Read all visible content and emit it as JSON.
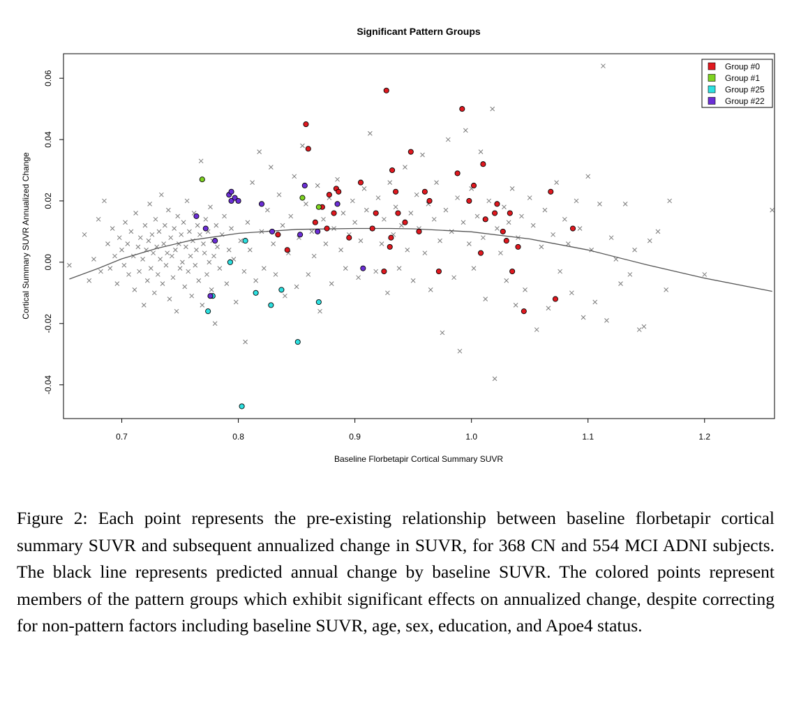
{
  "chart_data": {
    "type": "scatter",
    "title": "Significant Pattern Groups",
    "xlabel": "Baseline Florbetapir Cortical Summary SUVR",
    "ylabel": "Cortical Summary SUVR Annualized Change",
    "xlim": [
      0.65,
      1.26
    ],
    "ylim": [
      -0.051,
      0.068
    ],
    "x_ticks": [
      "0.7",
      "0.8",
      "0.9",
      "1.0",
      "1.1",
      "1.2"
    ],
    "y_ticks": [
      "-0.04",
      "-0.02",
      "0.00",
      "0.02",
      "0.04",
      "0.06"
    ],
    "legend_position": "top-right",
    "grid": false,
    "background_points": {
      "marker": "x",
      "color": "#7a7a7a",
      "points": [
        [
          0.655,
          -0.001
        ],
        [
          0.668,
          0.009
        ],
        [
          0.672,
          -0.006
        ],
        [
          0.676,
          0.001
        ],
        [
          0.68,
          0.014
        ],
        [
          0.682,
          -0.003
        ],
        [
          0.685,
          0.02
        ],
        [
          0.688,
          0.006
        ],
        [
          0.69,
          -0.002
        ],
        [
          0.692,
          0.011
        ],
        [
          0.694,
          0.002
        ],
        [
          0.696,
          -0.007
        ],
        [
          0.698,
          0.008
        ],
        [
          0.7,
          0.004
        ],
        [
          0.702,
          -0.001
        ],
        [
          0.703,
          0.013
        ],
        [
          0.705,
          0.006
        ],
        [
          0.706,
          -0.004
        ],
        [
          0.708,
          0.01
        ],
        [
          0.71,
          0.002
        ],
        [
          0.711,
          -0.009
        ],
        [
          0.712,
          0.016
        ],
        [
          0.714,
          0.005
        ],
        [
          0.715,
          -0.003
        ],
        [
          0.716,
          0.008
        ],
        [
          0.718,
          0.001
        ],
        [
          0.719,
          -0.014
        ],
        [
          0.72,
          0.012
        ],
        [
          0.721,
          0.004
        ],
        [
          0.722,
          -0.006
        ],
        [
          0.723,
          0.007
        ],
        [
          0.724,
          0.019
        ],
        [
          0.725,
          -0.002
        ],
        [
          0.726,
          0.009
        ],
        [
          0.727,
          0.003
        ],
        [
          0.728,
          -0.01
        ],
        [
          0.729,
          0.014
        ],
        [
          0.73,
          0.005
        ],
        [
          0.731,
          -0.004
        ],
        [
          0.732,
          0.01
        ],
        [
          0.733,
          0.001
        ],
        [
          0.734,
          0.022
        ],
        [
          0.735,
          -0.007
        ],
        [
          0.736,
          0.006
        ],
        [
          0.737,
          0.012
        ],
        [
          0.738,
          -0.001
        ],
        [
          0.739,
          0.003
        ],
        [
          0.74,
          0.017
        ],
        [
          0.741,
          -0.012
        ],
        [
          0.742,
          0.008
        ],
        [
          0.743,
          0.002
        ],
        [
          0.744,
          -0.005
        ],
        [
          0.745,
          0.011
        ],
        [
          0.746,
          0.004
        ],
        [
          0.747,
          -0.016
        ],
        [
          0.748,
          0.015
        ],
        [
          0.749,
          0.006
        ],
        [
          0.75,
          -0.002
        ],
        [
          0.751,
          0.009
        ],
        [
          0.752,
          0.0
        ],
        [
          0.753,
          0.013
        ],
        [
          0.754,
          -0.008
        ],
        [
          0.755,
          0.005
        ],
        [
          0.756,
          0.02
        ],
        [
          0.757,
          -0.003
        ],
        [
          0.758,
          0.01
        ],
        [
          0.759,
          0.002
        ],
        [
          0.76,
          -0.011
        ],
        [
          0.761,
          0.007
        ],
        [
          0.762,
          0.016
        ],
        [
          0.763,
          -0.001
        ],
        [
          0.764,
          0.004
        ],
        [
          0.765,
          0.012
        ],
        [
          0.766,
          -0.006
        ],
        [
          0.767,
          0.009
        ],
        [
          0.768,
          0.033
        ],
        [
          0.769,
          -0.014
        ],
        [
          0.77,
          0.006
        ],
        [
          0.771,
          0.003
        ],
        [
          0.772,
          0.014
        ],
        [
          0.773,
          -0.004
        ],
        [
          0.774,
          0.01
        ],
        [
          0.775,
          0.0
        ],
        [
          0.776,
          0.018
        ],
        [
          0.777,
          -0.009
        ],
        [
          0.778,
          0.007
        ],
        [
          0.779,
          0.002
        ],
        [
          0.78,
          -0.02
        ],
        [
          0.781,
          0.012
        ],
        [
          0.782,
          0.005
        ],
        [
          0.784,
          -0.002
        ],
        [
          0.786,
          0.009
        ],
        [
          0.788,
          0.015
        ],
        [
          0.79,
          -0.007
        ],
        [
          0.792,
          0.004
        ],
        [
          0.794,
          0.011
        ],
        [
          0.796,
          0.001
        ],
        [
          0.798,
          -0.013
        ],
        [
          0.8,
          0.02
        ],
        [
          0.802,
          0.007
        ],
        [
          0.805,
          -0.003
        ],
        [
          0.806,
          -0.026
        ],
        [
          0.808,
          0.013
        ],
        [
          0.81,
          0.004
        ],
        [
          0.812,
          0.026
        ],
        [
          0.815,
          -0.006
        ],
        [
          0.818,
          0.036
        ],
        [
          0.82,
          0.01
        ],
        [
          0.822,
          -0.002
        ],
        [
          0.825,
          0.017
        ],
        [
          0.828,
          0.031
        ],
        [
          0.83,
          0.006
        ],
        [
          0.832,
          -0.004
        ],
        [
          0.835,
          0.022
        ],
        [
          0.838,
          0.012
        ],
        [
          0.84,
          -0.011
        ],
        [
          0.843,
          0.003
        ],
        [
          0.845,
          0.015
        ],
        [
          0.848,
          0.028
        ],
        [
          0.85,
          -0.008
        ],
        [
          0.852,
          0.008
        ],
        [
          0.855,
          0.038
        ],
        [
          0.858,
          0.019
        ],
        [
          0.86,
          -0.004
        ],
        [
          0.863,
          0.01
        ],
        [
          0.865,
          0.002
        ],
        [
          0.868,
          0.025
        ],
        [
          0.87,
          -0.016
        ],
        [
          0.873,
          0.014
        ],
        [
          0.875,
          0.006
        ],
        [
          0.878,
          0.021
        ],
        [
          0.88,
          -0.007
        ],
        [
          0.882,
          0.011
        ],
        [
          0.885,
          0.027
        ],
        [
          0.888,
          0.004
        ],
        [
          0.89,
          0.016
        ],
        [
          0.892,
          -0.002
        ],
        [
          0.895,
          0.009
        ],
        [
          0.898,
          0.02
        ],
        [
          0.9,
          0.013
        ],
        [
          0.903,
          -0.005
        ],
        [
          0.905,
          0.007
        ],
        [
          0.908,
          0.024
        ],
        [
          0.91,
          0.017
        ],
        [
          0.913,
          0.042
        ],
        [
          0.915,
          0.011
        ],
        [
          0.918,
          -0.003
        ],
        [
          0.92,
          0.021
        ],
        [
          0.923,
          0.006
        ],
        [
          0.925,
          0.014
        ],
        [
          0.928,
          -0.01
        ],
        [
          0.93,
          0.026
        ],
        [
          0.933,
          0.009
        ],
        [
          0.935,
          0.018
        ],
        [
          0.938,
          -0.002
        ],
        [
          0.94,
          0.012
        ],
        [
          0.943,
          0.031
        ],
        [
          0.945,
          0.004
        ],
        [
          0.948,
          0.016
        ],
        [
          0.95,
          -0.006
        ],
        [
          0.953,
          0.022
        ],
        [
          0.955,
          0.011
        ],
        [
          0.958,
          0.035
        ],
        [
          0.96,
          0.003
        ],
        [
          0.963,
          0.019
        ],
        [
          0.965,
          -0.009
        ],
        [
          0.968,
          0.014
        ],
        [
          0.97,
          0.026
        ],
        [
          0.973,
          0.007
        ],
        [
          0.975,
          -0.023
        ],
        [
          0.978,
          0.017
        ],
        [
          0.98,
          0.04
        ],
        [
          0.983,
          0.01
        ],
        [
          0.985,
          -0.005
        ],
        [
          0.988,
          0.021
        ],
        [
          0.99,
          -0.029
        ],
        [
          0.993,
          0.013
        ],
        [
          0.995,
          0.043
        ],
        [
          0.998,
          0.006
        ],
        [
          1.0,
          0.024
        ],
        [
          1.002,
          -0.002
        ],
        [
          1.005,
          0.015
        ],
        [
          1.008,
          0.036
        ],
        [
          1.01,
          0.008
        ],
        [
          1.012,
          -0.012
        ],
        [
          1.015,
          0.02
        ],
        [
          1.018,
          0.05
        ],
        [
          1.02,
          -0.038
        ],
        [
          1.022,
          0.011
        ],
        [
          1.025,
          0.003
        ],
        [
          1.028,
          0.018
        ],
        [
          1.03,
          -0.006
        ],
        [
          1.032,
          0.013
        ],
        [
          1.035,
          0.024
        ],
        [
          1.038,
          -0.014
        ],
        [
          1.04,
          0.008
        ],
        [
          1.043,
          0.015
        ],
        [
          1.046,
          -0.009
        ],
        [
          1.05,
          0.021
        ],
        [
          1.053,
          0.012
        ],
        [
          1.056,
          -0.022
        ],
        [
          1.06,
          0.005
        ],
        [
          1.063,
          0.017
        ],
        [
          1.066,
          -0.015
        ],
        [
          1.07,
          0.009
        ],
        [
          1.073,
          0.026
        ],
        [
          1.076,
          -0.003
        ],
        [
          1.08,
          0.014
        ],
        [
          1.083,
          0.006
        ],
        [
          1.086,
          -0.01
        ],
        [
          1.09,
          0.02
        ],
        [
          1.093,
          0.011
        ],
        [
          1.096,
          -0.018
        ],
        [
          1.1,
          0.028
        ],
        [
          1.103,
          0.004
        ],
        [
          1.106,
          -0.013
        ],
        [
          1.11,
          0.019
        ],
        [
          1.113,
          0.064
        ],
        [
          1.116,
          -0.019
        ],
        [
          1.12,
          0.008
        ],
        [
          1.124,
          0.001
        ],
        [
          1.128,
          -0.007
        ],
        [
          1.132,
          0.019
        ],
        [
          1.136,
          -0.004
        ],
        [
          1.14,
          0.004
        ],
        [
          1.144,
          -0.022
        ],
        [
          1.148,
          -0.021
        ],
        [
          1.153,
          0.007
        ],
        [
          1.16,
          0.01
        ],
        [
          1.167,
          -0.009
        ],
        [
          1.17,
          0.02
        ],
        [
          1.2,
          -0.004
        ],
        [
          1.258,
          0.017
        ]
      ]
    },
    "groups": [
      {
        "name": "Group #0",
        "color": "#e0181f",
        "points": [
          [
            0.834,
            0.009
          ],
          [
            0.842,
            0.004
          ],
          [
            0.858,
            0.045
          ],
          [
            0.86,
            0.037
          ],
          [
            0.866,
            0.013
          ],
          [
            0.872,
            0.018
          ],
          [
            0.876,
            0.011
          ],
          [
            0.878,
            0.022
          ],
          [
            0.882,
            0.016
          ],
          [
            0.884,
            0.024
          ],
          [
            0.886,
            0.023
          ],
          [
            0.895,
            0.008
          ],
          [
            0.905,
            0.026
          ],
          [
            0.915,
            0.011
          ],
          [
            0.918,
            0.016
          ],
          [
            0.925,
            -0.003
          ],
          [
            0.927,
            0.056
          ],
          [
            0.93,
            0.005
          ],
          [
            0.931,
            0.008
          ],
          [
            0.932,
            0.03
          ],
          [
            0.935,
            0.023
          ],
          [
            0.937,
            0.016
          ],
          [
            0.943,
            0.013
          ],
          [
            0.948,
            0.036
          ],
          [
            0.955,
            0.01
          ],
          [
            0.96,
            0.023
          ],
          [
            0.964,
            0.02
          ],
          [
            0.972,
            -0.003
          ],
          [
            0.988,
            0.029
          ],
          [
            0.992,
            0.05
          ],
          [
            0.998,
            0.02
          ],
          [
            1.002,
            0.025
          ],
          [
            1.008,
            0.003
          ],
          [
            1.01,
            0.032
          ],
          [
            1.012,
            0.014
          ],
          [
            1.02,
            0.016
          ],
          [
            1.022,
            0.019
          ],
          [
            1.027,
            0.01
          ],
          [
            1.03,
            0.007
          ],
          [
            1.033,
            0.016
          ],
          [
            1.035,
            -0.003
          ],
          [
            1.04,
            0.005
          ],
          [
            1.045,
            -0.016
          ],
          [
            1.068,
            0.023
          ],
          [
            1.072,
            -0.012
          ],
          [
            1.087,
            0.011
          ]
        ]
      },
      {
        "name": "Group #1",
        "color": "#7ed321",
        "points": [
          [
            0.769,
            0.027
          ],
          [
            0.855,
            0.021
          ],
          [
            0.869,
            0.018
          ]
        ]
      },
      {
        "name": "Group #25",
        "color": "#2de0e0",
        "points": [
          [
            0.774,
            -0.016
          ],
          [
            0.778,
            -0.011
          ],
          [
            0.793,
            0.0
          ],
          [
            0.803,
            -0.047
          ],
          [
            0.806,
            0.007
          ],
          [
            0.815,
            -0.01
          ],
          [
            0.828,
            -0.014
          ],
          [
            0.837,
            -0.009
          ],
          [
            0.851,
            -0.026
          ],
          [
            0.869,
            -0.013
          ]
        ]
      },
      {
        "name": "Group #22",
        "color": "#6b2ed6",
        "points": [
          [
            0.764,
            0.015
          ],
          [
            0.772,
            0.011
          ],
          [
            0.776,
            -0.011
          ],
          [
            0.78,
            0.007
          ],
          [
            0.792,
            0.022
          ],
          [
            0.794,
            0.023
          ],
          [
            0.794,
            0.02
          ],
          [
            0.797,
            0.021
          ],
          [
            0.8,
            0.02
          ],
          [
            0.82,
            0.019
          ],
          [
            0.829,
            0.01
          ],
          [
            0.853,
            0.009
          ],
          [
            0.857,
            0.025
          ],
          [
            0.868,
            0.01
          ],
          [
            0.885,
            0.019
          ],
          [
            0.907,
            -0.002
          ]
        ]
      }
    ],
    "fit_line": {
      "color": "#555555",
      "points": [
        [
          0.655,
          -0.0055
        ],
        [
          0.68,
          -0.002
        ],
        [
          0.7,
          0.0011
        ],
        [
          0.73,
          0.0045
        ],
        [
          0.76,
          0.0072
        ],
        [
          0.8,
          0.0094
        ],
        [
          0.85,
          0.0107
        ],
        [
          0.9,
          0.011
        ],
        [
          0.93,
          0.011
        ],
        [
          0.95,
          0.0109
        ],
        [
          1.0,
          0.0099
        ],
        [
          1.05,
          0.0076
        ],
        [
          1.1,
          0.004
        ],
        [
          1.15,
          -0.0008
        ],
        [
          1.2,
          -0.0052
        ],
        [
          1.258,
          -0.0095
        ]
      ]
    }
  },
  "caption": "Figure 2: Each point represents the pre-existing relationship between baseline florbetapir cortical summary SUVR and subsequent annualized change in SUVR, for 368 CN and 554 MCI ADNI subjects. The black line represents predicted annual change by baseline SUVR. The colored points represent members of the pattern groups which exhibit significant effects on annualized change, despite correcting for non-pattern factors including baseline SUVR, age, sex, education, and Apoe4 status."
}
